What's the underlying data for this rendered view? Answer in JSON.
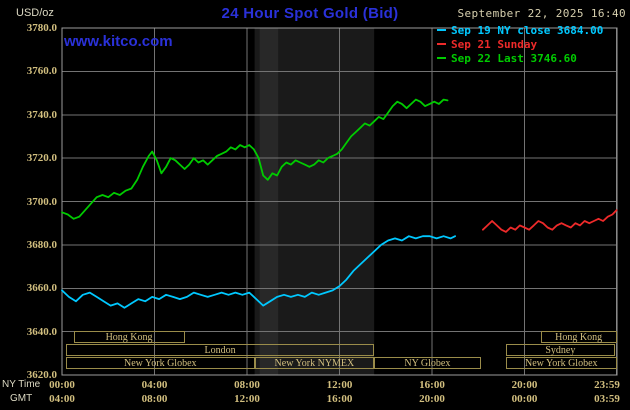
{
  "header": {
    "unit_label": "USD/oz",
    "title": "24 Hour Spot Gold (Bid)",
    "datetime": "September 22, 2025 16:40",
    "watermark": "www.kitco.com"
  },
  "legend": [
    {
      "label": "Sep 19 NY close 3684.00",
      "color": "#00c8ff"
    },
    {
      "label": "Sep 21 Sunday",
      "color": "#ee2a2a"
    },
    {
      "label": "Sep 22 Last 3746.60",
      "color": "#00cc00"
    }
  ],
  "axes": {
    "y_ticks": [
      "3780.0",
      "3760.0",
      "3740.0",
      "3720.0",
      "3700.0",
      "3680.0",
      "3660.0",
      "3640.0",
      "3620.0"
    ],
    "x_row1_label": "NY Time",
    "x_row2_label": "GMT",
    "x_ticks_ny": [
      "00:00",
      "04:00",
      "08:00",
      "12:00",
      "16:00",
      "20:00",
      "23:59"
    ],
    "x_ticks_gmt": [
      "04:00",
      "08:00",
      "12:00",
      "16:00",
      "20:00",
      "00:00",
      "03:59"
    ],
    "x_tick_hours": [
      0,
      4,
      8,
      12,
      16,
      20,
      23.983
    ]
  },
  "sessions": [
    {
      "row": 0,
      "label": "Hong Kong",
      "start": 0.5,
      "end": 5.3
    },
    {
      "row": 0,
      "label": "Hong Kong",
      "start": 20.7,
      "end": 23.98
    },
    {
      "row": 1,
      "label": "London",
      "start": 0.17,
      "end": 13.5
    },
    {
      "row": 1,
      "label": "Sydney",
      "start": 19.2,
      "end": 23.9
    },
    {
      "row": 2,
      "label": "New York Globex",
      "start": 0.17,
      "end": 8.33
    },
    {
      "row": 2,
      "label": "New York NYMEX",
      "start": 8.33,
      "end": 13.5
    },
    {
      "row": 2,
      "label": "NY Globex",
      "start": 13.5,
      "end": 18.1
    },
    {
      "row": 2,
      "label": "New York Globex",
      "start": 19.2,
      "end": 23.98
    }
  ],
  "chart_data": {
    "type": "line",
    "title": "24 Hour Spot Gold (Bid)",
    "ylabel": "USD/oz",
    "xlabel": "NY Time (hours, 00:00-23:59)",
    "ylim": [
      3620,
      3780
    ],
    "xlim": [
      0,
      24
    ],
    "grid_step": 20,
    "grid": true,
    "legend_position": "top-right",
    "bands": [
      {
        "start": 8.33,
        "end": 13.5,
        "color": "#1a1a1a"
      },
      {
        "start": 8.55,
        "end": 9.35,
        "color": "#282828"
      }
    ],
    "series": [
      {
        "name": "Sep 22 Last 3746.60",
        "color": "#00cc00",
        "x": [
          0,
          0.25,
          0.5,
          0.75,
          1,
          1.25,
          1.5,
          1.75,
          2,
          2.25,
          2.5,
          2.75,
          3,
          3.25,
          3.5,
          3.75,
          3.9,
          4.1,
          4.3,
          4.5,
          4.7,
          4.9,
          5.1,
          5.3,
          5.5,
          5.7,
          5.9,
          6.1,
          6.3,
          6.5,
          6.7,
          6.9,
          7.1,
          7.3,
          7.5,
          7.7,
          7.9,
          8.1,
          8.3,
          8.5,
          8.7,
          8.9,
          9.1,
          9.3,
          9.5,
          9.7,
          9.9,
          10.1,
          10.3,
          10.5,
          10.7,
          10.9,
          11.1,
          11.3,
          11.5,
          11.7,
          11.9,
          12.1,
          12.3,
          12.5,
          12.7,
          12.9,
          13.1,
          13.3,
          13.5,
          13.7,
          13.9,
          14.1,
          14.3,
          14.5,
          14.7,
          14.9,
          15.1,
          15.3,
          15.5,
          15.7,
          15.9,
          16.1,
          16.3,
          16.5,
          16.67
        ],
        "y": [
          3695,
          3694,
          3692,
          3693,
          3696,
          3699,
          3702,
          3703,
          3702,
          3704,
          3703,
          3705,
          3706,
          3710,
          3716,
          3721,
          3723,
          3719,
          3713,
          3716,
          3720,
          3719,
          3717,
          3715,
          3717,
          3720,
          3718,
          3719,
          3717,
          3719,
          3721,
          3722,
          3723,
          3725,
          3724,
          3726,
          3725,
          3726,
          3724,
          3720,
          3712,
          3710,
          3713,
          3712,
          3716,
          3718,
          3717,
          3719,
          3718,
          3717,
          3716,
          3717,
          3719,
          3718,
          3720,
          3721,
          3722,
          3724,
          3727,
          3730,
          3732,
          3734,
          3736,
          3735,
          3737,
          3739,
          3738,
          3741,
          3744,
          3746,
          3745,
          3743,
          3745,
          3747,
          3746,
          3744,
          3745,
          3746,
          3745,
          3747,
          3746.6
        ]
      },
      {
        "name": "Sep 19 NY close 3684.00",
        "color": "#00c8ff",
        "x": [
          0,
          0.3,
          0.6,
          0.9,
          1.2,
          1.5,
          1.8,
          2.1,
          2.4,
          2.7,
          3,
          3.3,
          3.6,
          3.9,
          4.2,
          4.5,
          4.8,
          5.1,
          5.4,
          5.7,
          6,
          6.3,
          6.6,
          6.9,
          7.2,
          7.5,
          7.8,
          8.1,
          8.4,
          8.7,
          9,
          9.3,
          9.6,
          9.9,
          10.2,
          10.5,
          10.8,
          11.1,
          11.4,
          11.7,
          12,
          12.3,
          12.6,
          12.9,
          13.2,
          13.5,
          13.8,
          14.1,
          14.4,
          14.7,
          15,
          15.3,
          15.6,
          15.9,
          16.2,
          16.5,
          16.8,
          17
        ],
        "y": [
          3659,
          3656,
          3654,
          3657,
          3658,
          3656,
          3654,
          3652,
          3653,
          3651,
          3653,
          3655,
          3654,
          3656,
          3655,
          3657,
          3656,
          3655,
          3656,
          3658,
          3657,
          3656,
          3657,
          3658,
          3657,
          3658,
          3657,
          3658,
          3655,
          3652,
          3654,
          3656,
          3657,
          3656,
          3657,
          3656,
          3658,
          3657,
          3658,
          3659,
          3661,
          3664,
          3668,
          3671,
          3674,
          3677,
          3680,
          3682,
          3683,
          3682,
          3684,
          3683,
          3684,
          3684,
          3683,
          3684,
          3683,
          3684
        ]
      },
      {
        "name": "Sep 21 Sunday",
        "color": "#ee2a2a",
        "x": [
          18.2,
          18.4,
          18.6,
          18.8,
          19,
          19.2,
          19.4,
          19.6,
          19.8,
          20,
          20.2,
          20.4,
          20.6,
          20.8,
          21,
          21.2,
          21.4,
          21.6,
          21.8,
          22,
          22.2,
          22.4,
          22.6,
          22.8,
          23,
          23.2,
          23.4,
          23.6,
          23.8,
          23.98
        ],
        "y": [
          3687,
          3689,
          3691,
          3689,
          3687,
          3686,
          3688,
          3687,
          3689,
          3688,
          3687,
          3689,
          3691,
          3690,
          3688,
          3687,
          3689,
          3690,
          3689,
          3688,
          3690,
          3689,
          3691,
          3690,
          3691,
          3692,
          3691,
          3693,
          3694,
          3696
        ]
      }
    ]
  }
}
